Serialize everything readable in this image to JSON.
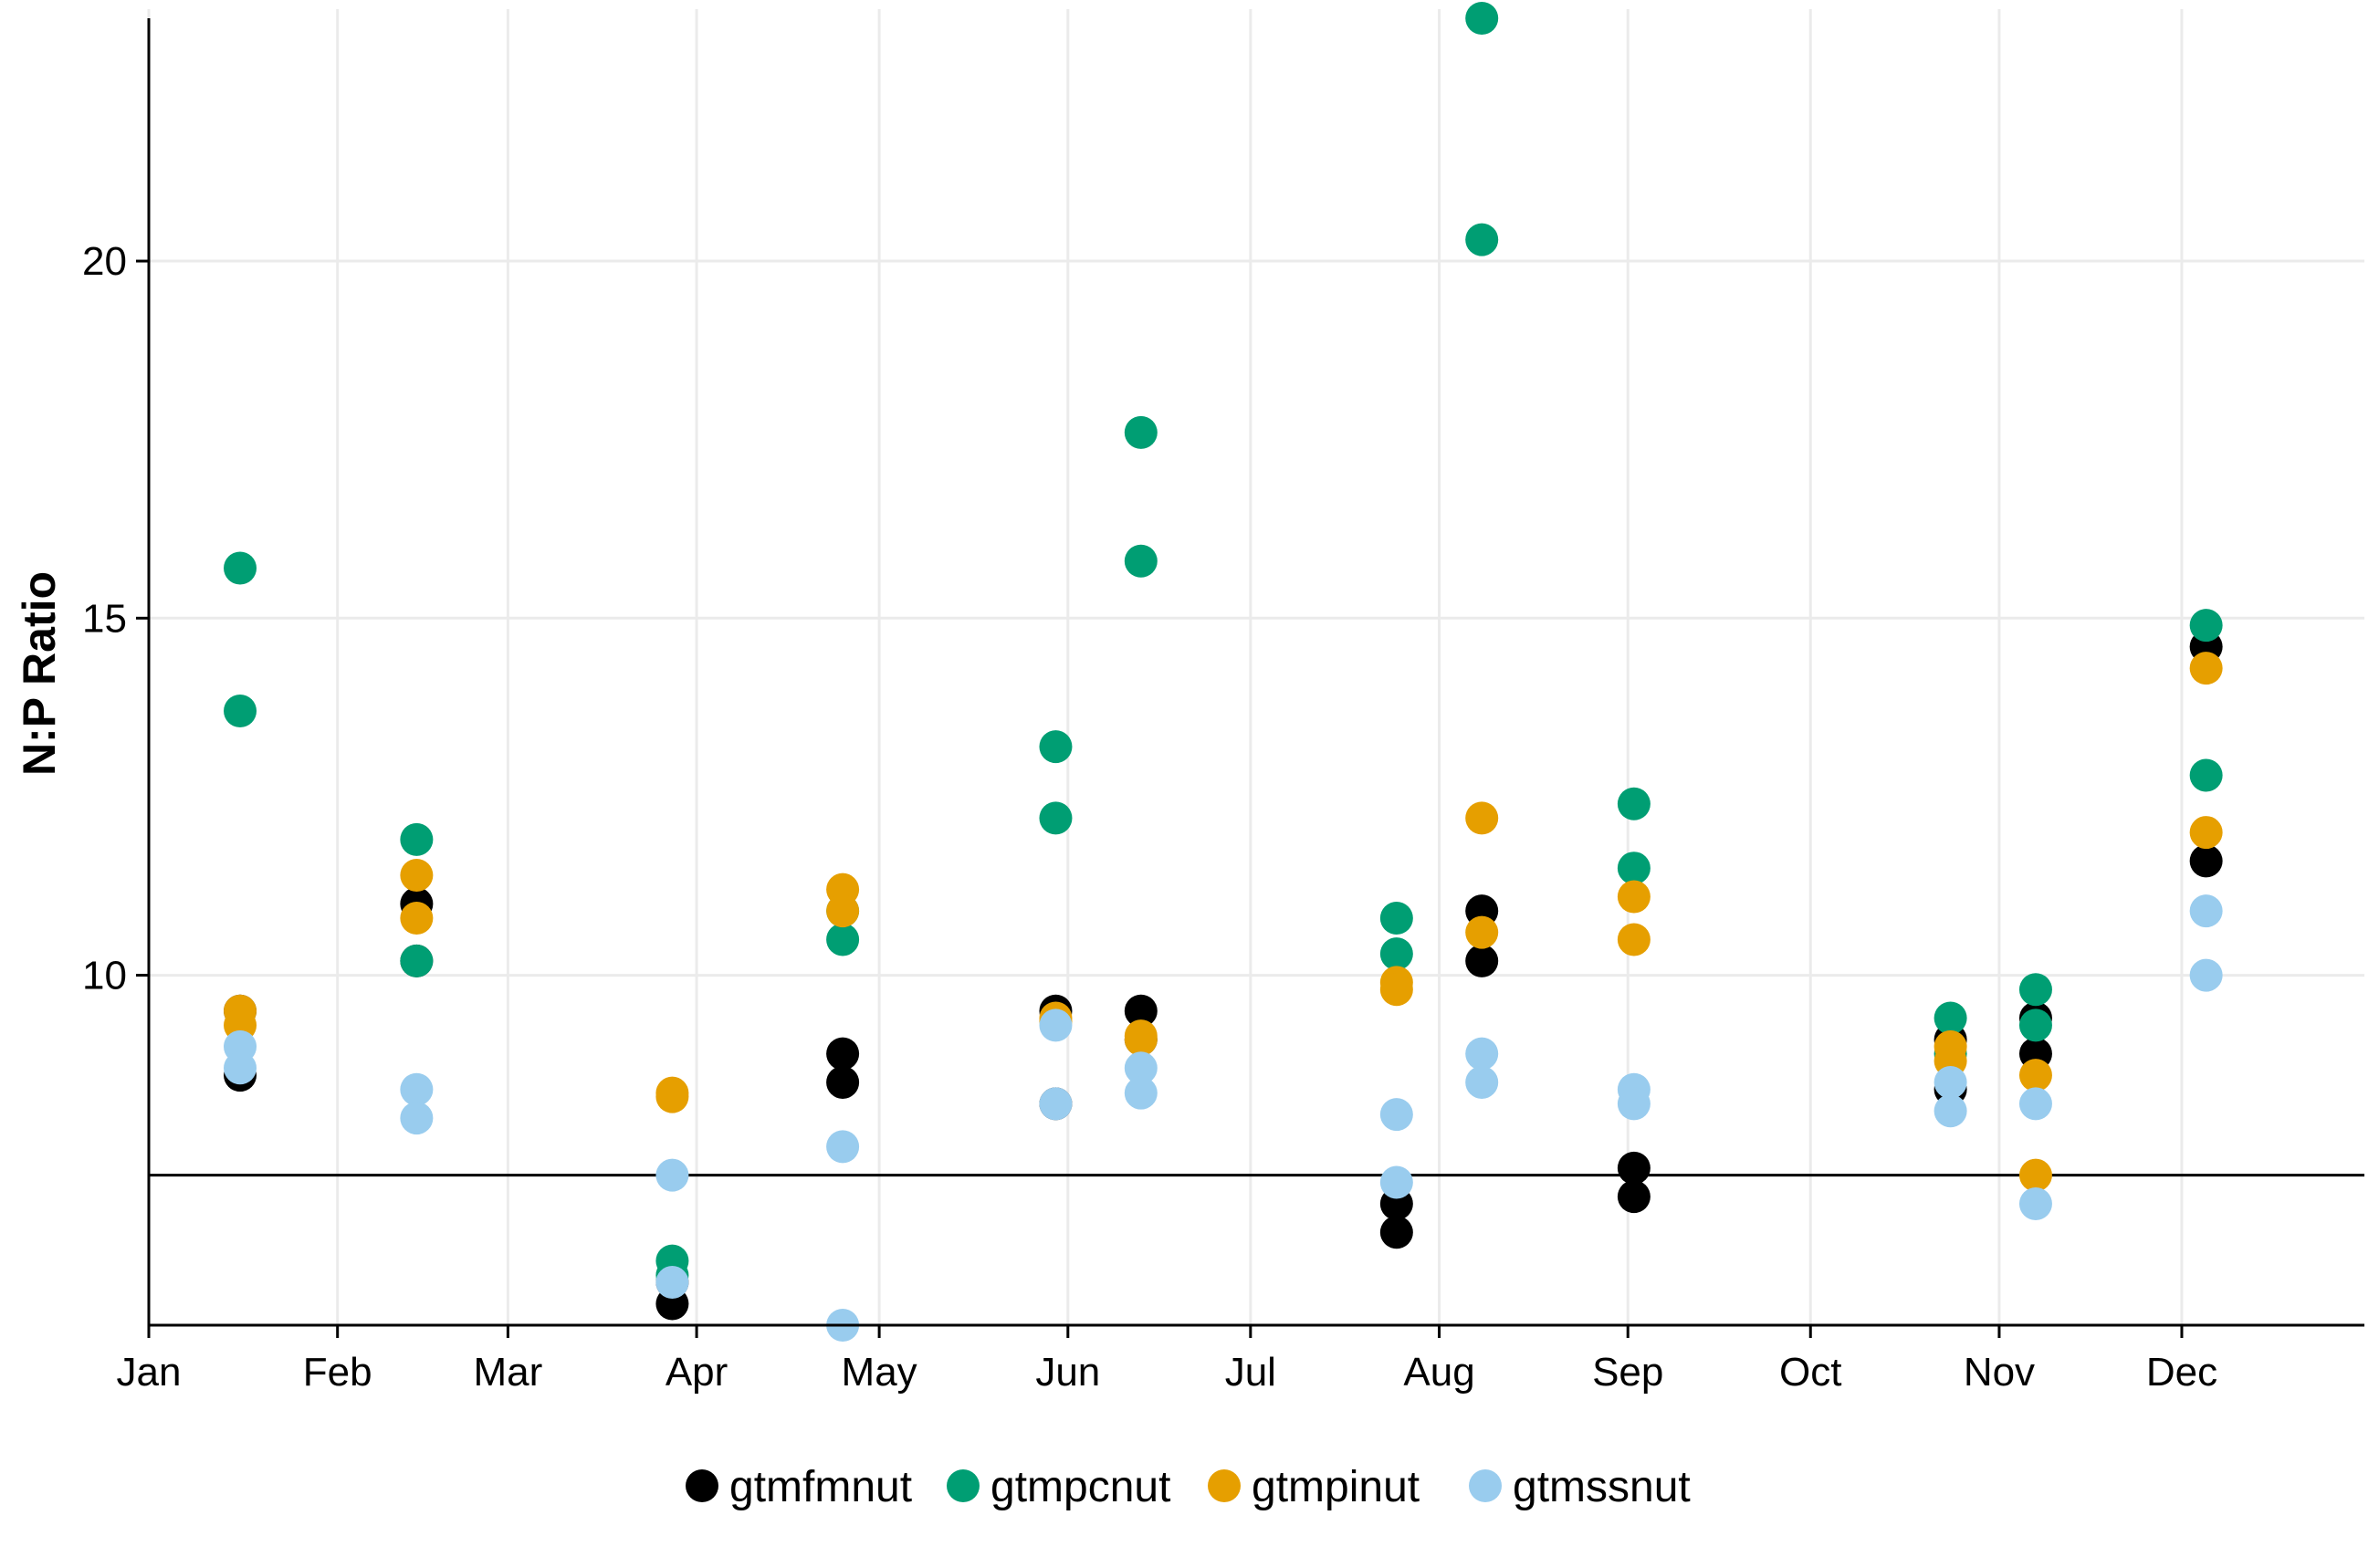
{
  "chart_data": {
    "type": "scatter",
    "title": "",
    "xlabel": "",
    "ylabel": "N:P Ratio",
    "x_axis": {
      "type": "date",
      "range": [
        "2019-01-01",
        "2019-12-31"
      ],
      "ticks": [
        {
          "date": "2019-01-01",
          "label": "Jan"
        },
        {
          "date": "2019-02-01",
          "label": "Feb"
        },
        {
          "date": "2019-03-01",
          "label": "Mar"
        },
        {
          "date": "2019-04-01",
          "label": "Apr"
        },
        {
          "date": "2019-05-01",
          "label": "May"
        },
        {
          "date": "2019-06-01",
          "label": "Jun"
        },
        {
          "date": "2019-07-01",
          "label": "Jul"
        },
        {
          "date": "2019-08-01",
          "label": "Aug"
        },
        {
          "date": "2019-09-01",
          "label": "Sep"
        },
        {
          "date": "2019-10-01",
          "label": "Oct"
        },
        {
          "date": "2019-11-01",
          "label": "Nov"
        },
        {
          "date": "2019-12-01",
          "label": "Dec"
        }
      ]
    },
    "y_axis": {
      "range": [
        5.1,
        23.4
      ],
      "ticks": [
        {
          "value": 10,
          "label": "10"
        },
        {
          "value": 15,
          "label": "15"
        },
        {
          "value": 20,
          "label": "20"
        }
      ]
    },
    "grid": true,
    "reference_line": {
      "y": 7.2,
      "color": "#000000"
    },
    "legend": {
      "position": "bottom"
    },
    "series": [
      {
        "name": "gtmfmnut",
        "color": "#000000",
        "points": [
          {
            "x": "2019-01-16",
            "y": 9.5
          },
          {
            "x": "2019-01-16",
            "y": 8.6
          },
          {
            "x": "2019-02-14",
            "y": 11.0
          },
          {
            "x": "2019-02-14",
            "y": 10.2
          },
          {
            "x": "2019-03-28",
            "y": 5.4
          },
          {
            "x": "2019-03-28",
            "y": 5.7
          },
          {
            "x": "2019-04-25",
            "y": 8.9
          },
          {
            "x": "2019-04-25",
            "y": 8.5
          },
          {
            "x": "2019-05-30",
            "y": 9.5
          },
          {
            "x": "2019-05-30",
            "y": 8.2
          },
          {
            "x": "2019-06-13",
            "y": 9.5
          },
          {
            "x": "2019-06-13",
            "y": 9.1
          },
          {
            "x": "2019-07-25",
            "y": 6.8
          },
          {
            "x": "2019-07-25",
            "y": 6.4
          },
          {
            "x": "2019-08-08",
            "y": 10.9
          },
          {
            "x": "2019-08-08",
            "y": 10.2
          },
          {
            "x": "2019-09-02",
            "y": 7.3
          },
          {
            "x": "2019-09-02",
            "y": 6.9
          },
          {
            "x": "2019-10-24",
            "y": 9.1
          },
          {
            "x": "2019-10-24",
            "y": 8.4
          },
          {
            "x": "2019-11-07",
            "y": 9.4
          },
          {
            "x": "2019-11-07",
            "y": 8.9
          },
          {
            "x": "2019-12-05",
            "y": 14.6
          },
          {
            "x": "2019-12-05",
            "y": 11.6
          }
        ]
      },
      {
        "name": "gtmpcnut",
        "color": "#009E73",
        "points": [
          {
            "x": "2019-01-16",
            "y": 15.7
          },
          {
            "x": "2019-01-16",
            "y": 13.7
          },
          {
            "x": "2019-02-14",
            "y": 11.9
          },
          {
            "x": "2019-02-14",
            "y": 10.2
          },
          {
            "x": "2019-03-28",
            "y": 6.0
          },
          {
            "x": "2019-03-28",
            "y": 5.8
          },
          {
            "x": "2019-04-25",
            "y": 10.9
          },
          {
            "x": "2019-04-25",
            "y": 10.5
          },
          {
            "x": "2019-05-30",
            "y": 13.2
          },
          {
            "x": "2019-05-30",
            "y": 12.2
          },
          {
            "x": "2019-06-13",
            "y": 17.6
          },
          {
            "x": "2019-06-13",
            "y": 15.8
          },
          {
            "x": "2019-07-25",
            "y": 10.8
          },
          {
            "x": "2019-07-25",
            "y": 10.3
          },
          {
            "x": "2019-08-08",
            "y": 23.4
          },
          {
            "x": "2019-08-08",
            "y": 20.3
          },
          {
            "x": "2019-09-02",
            "y": 12.4
          },
          {
            "x": "2019-09-02",
            "y": 11.5
          },
          {
            "x": "2019-10-24",
            "y": 9.4
          },
          {
            "x": "2019-10-24",
            "y": 8.9
          },
          {
            "x": "2019-11-07",
            "y": 9.8
          },
          {
            "x": "2019-11-07",
            "y": 9.3
          },
          {
            "x": "2019-12-05",
            "y": 14.9
          },
          {
            "x": "2019-12-05",
            "y": 12.8
          }
        ]
      },
      {
        "name": "gtmpinut",
        "color": "#E69F00",
        "points": [
          {
            "x": "2019-01-16",
            "y": 9.5
          },
          {
            "x": "2019-01-16",
            "y": 9.3
          },
          {
            "x": "2019-02-14",
            "y": 11.4
          },
          {
            "x": "2019-02-14",
            "y": 10.8
          },
          {
            "x": "2019-03-28",
            "y": 8.35
          },
          {
            "x": "2019-03-28",
            "y": 8.3
          },
          {
            "x": "2019-04-25",
            "y": 11.2
          },
          {
            "x": "2019-04-25",
            "y": 10.9
          },
          {
            "x": "2019-05-30",
            "y": 9.4
          },
          {
            "x": "2019-05-30",
            "y": 9.35
          },
          {
            "x": "2019-06-13",
            "y": 9.15
          },
          {
            "x": "2019-06-13",
            "y": 9.1
          },
          {
            "x": "2019-07-25",
            "y": 9.9
          },
          {
            "x": "2019-07-25",
            "y": 9.8
          },
          {
            "x": "2019-08-08",
            "y": 12.2
          },
          {
            "x": "2019-08-08",
            "y": 10.6
          },
          {
            "x": "2019-09-02",
            "y": 11.1
          },
          {
            "x": "2019-09-02",
            "y": 10.5
          },
          {
            "x": "2019-10-24",
            "y": 9.0
          },
          {
            "x": "2019-10-24",
            "y": 8.8
          },
          {
            "x": "2019-11-07",
            "y": 8.6
          },
          {
            "x": "2019-11-07",
            "y": 7.2
          },
          {
            "x": "2019-12-05",
            "y": 14.3
          },
          {
            "x": "2019-12-05",
            "y": 12.0
          }
        ]
      },
      {
        "name": "gtmssnut",
        "color": "#99CCEE",
        "points": [
          {
            "x": "2019-01-16",
            "y": 9.0
          },
          {
            "x": "2019-01-16",
            "y": 8.7
          },
          {
            "x": "2019-02-14",
            "y": 8.4
          },
          {
            "x": "2019-02-14",
            "y": 8.0
          },
          {
            "x": "2019-03-28",
            "y": 7.2
          },
          {
            "x": "2019-03-28",
            "y": 5.7
          },
          {
            "x": "2019-04-25",
            "y": 7.6
          },
          {
            "x": "2019-04-25",
            "y": 5.1
          },
          {
            "x": "2019-05-30",
            "y": 9.3
          },
          {
            "x": "2019-05-30",
            "y": 8.2
          },
          {
            "x": "2019-06-13",
            "y": 8.7
          },
          {
            "x": "2019-06-13",
            "y": 8.35
          },
          {
            "x": "2019-07-25",
            "y": 8.05
          },
          {
            "x": "2019-07-25",
            "y": 7.1
          },
          {
            "x": "2019-08-08",
            "y": 8.9
          },
          {
            "x": "2019-08-08",
            "y": 8.5
          },
          {
            "x": "2019-09-02",
            "y": 8.4
          },
          {
            "x": "2019-09-02",
            "y": 8.2
          },
          {
            "x": "2019-10-24",
            "y": 8.5
          },
          {
            "x": "2019-10-24",
            "y": 8.1
          },
          {
            "x": "2019-11-07",
            "y": 8.2
          },
          {
            "x": "2019-11-07",
            "y": 6.8
          },
          {
            "x": "2019-12-05",
            "y": 10.9
          },
          {
            "x": "2019-12-05",
            "y": 10.0
          }
        ]
      }
    ]
  }
}
